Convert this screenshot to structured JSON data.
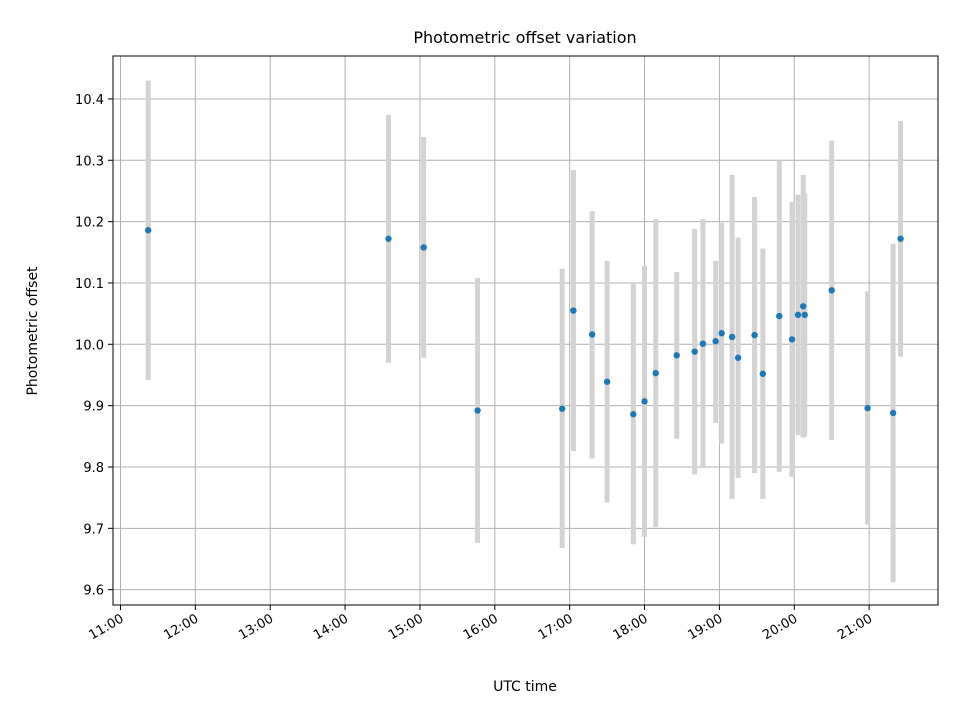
{
  "chart_data": {
    "type": "scatter",
    "title": "Photometric offset variation",
    "xlabel": "UTC time",
    "ylabel": "Photometric offset",
    "x_unit": "hours UTC",
    "xlim": [
      10.9,
      21.92
    ],
    "ylim": [
      9.575,
      10.47
    ],
    "x_ticks": [
      {
        "value": 11,
        "label": "11:00"
      },
      {
        "value": 12,
        "label": "12:00"
      },
      {
        "value": 13,
        "label": "13:00"
      },
      {
        "value": 14,
        "label": "14:00"
      },
      {
        "value": 15,
        "label": "15:00"
      },
      {
        "value": 16,
        "label": "16:00"
      },
      {
        "value": 17,
        "label": "17:00"
      },
      {
        "value": 18,
        "label": "18:00"
      },
      {
        "value": 19,
        "label": "19:00"
      },
      {
        "value": 20,
        "label": "20:00"
      },
      {
        "value": 21,
        "label": "21:00"
      }
    ],
    "y_ticks": [
      {
        "value": 9.6,
        "label": "9.6"
      },
      {
        "value": 9.7,
        "label": "9.7"
      },
      {
        "value": 9.8,
        "label": "9.8"
      },
      {
        "value": 9.9,
        "label": "9.9"
      },
      {
        "value": 10.0,
        "label": "10.0"
      },
      {
        "value": 10.1,
        "label": "10.1"
      },
      {
        "value": 10.2,
        "label": "10.2"
      },
      {
        "value": 10.3,
        "label": "10.3"
      },
      {
        "value": 10.4,
        "label": "10.4"
      }
    ],
    "grid": true,
    "legend": "none",
    "colors": {
      "point": "#1f77b4",
      "errorbar": "#d3d3d3"
    },
    "points": [
      {
        "x": 11.37,
        "y": 10.186,
        "err_low": 9.942,
        "err_high": 10.43
      },
      {
        "x": 14.58,
        "y": 10.172,
        "err_low": 9.97,
        "err_high": 10.374
      },
      {
        "x": 15.05,
        "y": 10.158,
        "err_low": 9.978,
        "err_high": 10.338
      },
      {
        "x": 15.77,
        "y": 9.892,
        "err_low": 9.676,
        "err_high": 10.108
      },
      {
        "x": 16.9,
        "y": 9.895,
        "err_low": 9.668,
        "err_high": 10.123
      },
      {
        "x": 17.05,
        "y": 10.055,
        "err_low": 9.826,
        "err_high": 10.284
      },
      {
        "x": 17.3,
        "y": 10.016,
        "err_low": 9.814,
        "err_high": 10.217
      },
      {
        "x": 17.5,
        "y": 9.939,
        "err_low": 9.742,
        "err_high": 10.136
      },
      {
        "x": 17.85,
        "y": 9.886,
        "err_low": 9.674,
        "err_high": 10.1
      },
      {
        "x": 18.0,
        "y": 9.907,
        "err_low": 9.686,
        "err_high": 10.128
      },
      {
        "x": 18.15,
        "y": 9.953,
        "err_low": 9.702,
        "err_high": 10.204
      },
      {
        "x": 18.43,
        "y": 9.982,
        "err_low": 9.846,
        "err_high": 10.118
      },
      {
        "x": 18.67,
        "y": 9.988,
        "err_low": 9.788,
        "err_high": 10.188
      },
      {
        "x": 18.78,
        "y": 10.001,
        "err_low": 9.798,
        "err_high": 10.204
      },
      {
        "x": 18.95,
        "y": 10.005,
        "err_low": 9.872,
        "err_high": 10.136
      },
      {
        "x": 19.03,
        "y": 10.018,
        "err_low": 9.838,
        "err_high": 10.198
      },
      {
        "x": 19.17,
        "y": 10.012,
        "err_low": 9.748,
        "err_high": 10.276
      },
      {
        "x": 19.25,
        "y": 9.978,
        "err_low": 9.782,
        "err_high": 10.174
      },
      {
        "x": 19.47,
        "y": 10.015,
        "err_low": 9.79,
        "err_high": 10.24
      },
      {
        "x": 19.58,
        "y": 9.952,
        "err_low": 9.748,
        "err_high": 10.156
      },
      {
        "x": 19.8,
        "y": 10.046,
        "err_low": 9.792,
        "err_high": 10.3
      },
      {
        "x": 19.97,
        "y": 10.008,
        "err_low": 9.784,
        "err_high": 10.232
      },
      {
        "x": 20.05,
        "y": 10.048,
        "err_low": 9.852,
        "err_high": 10.244
      },
      {
        "x": 20.12,
        "y": 10.062,
        "err_low": 9.848,
        "err_high": 10.276
      },
      {
        "x": 20.14,
        "y": 10.048,
        "err_low": 9.85,
        "err_high": 10.246
      },
      {
        "x": 20.5,
        "y": 10.088,
        "err_low": 9.844,
        "err_high": 10.332
      },
      {
        "x": 20.98,
        "y": 9.896,
        "err_low": 9.706,
        "err_high": 10.086
      },
      {
        "x": 21.32,
        "y": 9.888,
        "err_low": 9.612,
        "err_high": 10.164
      },
      {
        "x": 21.42,
        "y": 10.172,
        "err_low": 9.98,
        "err_high": 10.364
      }
    ]
  }
}
